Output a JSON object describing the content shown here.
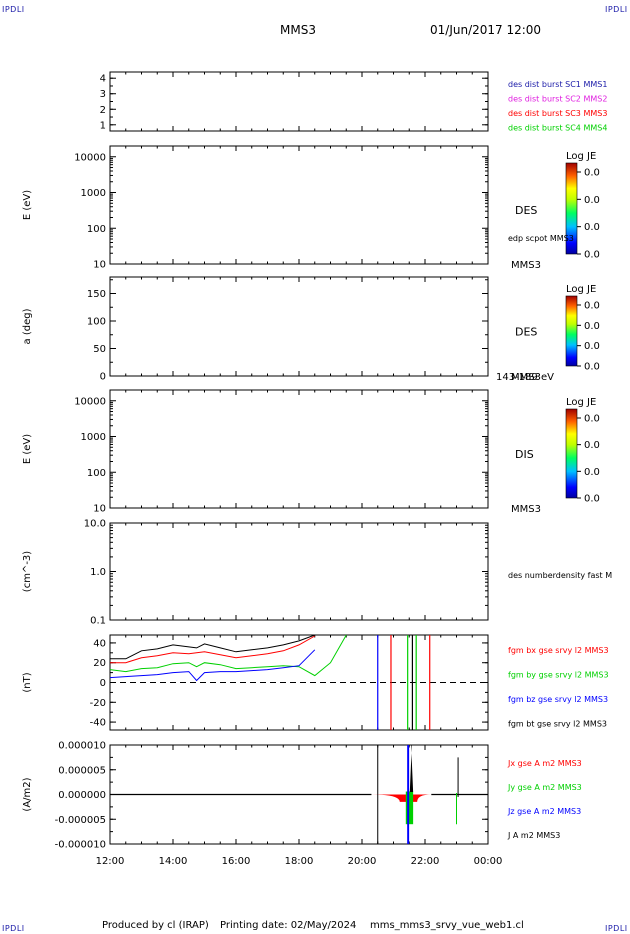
{
  "corner_label": "IPDLI",
  "header": {
    "spacecraft": "MMS3",
    "datetime": "01/Jun/2017 12:00"
  },
  "footer": {
    "produced": "Produced by cl (IRAP)",
    "printing": "Printing date: 02/May/2024",
    "file": "mms_mms3_srvy_vue_web1.cl"
  },
  "colors": {
    "black": "#000000",
    "red": "#ff0000",
    "green": "#00d000",
    "blue": "#0000ff",
    "magenta": "#e020e0",
    "navy": "#1a1aa8"
  },
  "chart_data": [
    {
      "type": "line",
      "ylabel": "",
      "ylim": [
        0.6,
        4.4
      ],
      "yticks": [
        "1",
        "2",
        "3",
        "4"
      ],
      "yticks_values": [
        1,
        2,
        3,
        4
      ],
      "legend": [
        {
          "text": "des dist burst SC1 MMS1",
          "color": "#1a1aa8"
        },
        {
          "text": "des dist burst SC2 MMS2",
          "color": "#e020e0"
        },
        {
          "text": "des dist burst SC3 MMS3",
          "color": "#ff0000"
        },
        {
          "text": "des dist burst SC4 MMS4",
          "color": "#00d000"
        }
      ]
    },
    {
      "type": "heatmap",
      "ylabel": "E (eV)",
      "scale": "log",
      "ylim": [
        10,
        20000
      ],
      "yticks": [
        "10",
        "100",
        "1000",
        "10000"
      ],
      "yticks_values": [
        10,
        100,
        1000,
        10000
      ],
      "instrument": "DES",
      "overlay": "edp scpot MMS3",
      "spacecraft": "MMS3",
      "colorbar": {
        "title": "Log JE",
        "ticks": [
          "0.0",
          "0.0",
          "0.0",
          "0.0"
        ]
      }
    },
    {
      "type": "heatmap",
      "ylabel": "a (deg)",
      "ylim": [
        0,
        180
      ],
      "yticks": [
        "0",
        "50",
        "100",
        "150"
      ],
      "yticks_values": [
        0,
        50,
        100,
        150
      ],
      "instrument": "DES",
      "spacecraft": "MMS3",
      "energy_range": "143-189 eV",
      "colorbar": {
        "title": "Log JE",
        "ticks": [
          "0.0",
          "0.0",
          "0.0",
          "0.0"
        ]
      }
    },
    {
      "type": "heatmap",
      "ylabel": "E (eV)",
      "scale": "log",
      "ylim": [
        10,
        20000
      ],
      "yticks": [
        "10",
        "100",
        "1000",
        "10000"
      ],
      "yticks_values": [
        10,
        100,
        1000,
        10000
      ],
      "instrument": "DIS",
      "spacecraft": "MMS3",
      "colorbar": {
        "title": "Log JE",
        "ticks": [
          "0.0",
          "0.0",
          "0.0",
          "0.0"
        ]
      }
    },
    {
      "type": "line",
      "ylabel": "(cm^-3)",
      "scale": "log",
      "ylim": [
        0.1,
        10
      ],
      "yticks": [
        "0.1",
        "1.0",
        "10.0"
      ],
      "yticks_values": [
        0.1,
        1,
        10
      ],
      "legend": [
        {
          "text": "des numberdensity fast M",
          "color": "#000000"
        }
      ]
    },
    {
      "type": "line",
      "ylabel": "(nT)",
      "ylim": [
        -48,
        48
      ],
      "yticks": [
        "-40",
        "-20",
        "0",
        "20",
        "40"
      ],
      "yticks_values": [
        -40,
        -20,
        0,
        20,
        40
      ],
      "zero_line": true,
      "x_hours": [
        12.0,
        12.5,
        13.0,
        13.5,
        14.0,
        14.5,
        14.75,
        15.0,
        15.5,
        16.0,
        16.5,
        17.0,
        17.5,
        18.0,
        18.5,
        19.0,
        19.5
      ],
      "series": [
        {
          "name": "fgm bx gse srvy l2 MMS3",
          "color": "#ff0000",
          "values": [
            20,
            20,
            25,
            27,
            30,
            29,
            30,
            31,
            28,
            25,
            27,
            29,
            32,
            38,
            47,
            null,
            null
          ]
        },
        {
          "name": "fgm by gse srvy l2 MMS3",
          "color": "#00d000",
          "values": [
            13,
            11,
            14,
            15,
            19,
            20,
            16,
            20,
            18,
            14,
            15,
            16,
            17,
            16,
            7,
            20,
            48
          ]
        },
        {
          "name": "fgm bz gse srvy l2 MMS3",
          "color": "#0000ff",
          "values": [
            5,
            6,
            7,
            8,
            10,
            11,
            2,
            10,
            11,
            11,
            12,
            13,
            15,
            17,
            33,
            null,
            null
          ]
        },
        {
          "name": "fgm bt gse srvy l2 MMS3",
          "color": "#000000",
          "values": [
            24,
            24,
            32,
            34,
            38,
            36,
            35,
            39,
            35,
            31,
            33,
            35,
            38,
            42,
            48,
            null,
            null
          ]
        }
      ],
      "spikes": [
        {
          "x_hours": 20.5,
          "color": "#0000ff",
          "y": [
            -48,
            48
          ]
        },
        {
          "x_hours": 20.92,
          "color": "#ff0000",
          "y": [
            -48,
            48
          ]
        },
        {
          "x_hours": 21.45,
          "color": "#00d000",
          "y": [
            -48,
            48
          ]
        },
        {
          "x_hours": 21.6,
          "color": "#000000",
          "y": [
            -48,
            48
          ]
        },
        {
          "x_hours": 21.72,
          "color": "#00d000",
          "y": [
            -48,
            48
          ]
        },
        {
          "x_hours": 22.15,
          "color": "#ff0000",
          "y": [
            -48,
            48
          ]
        }
      ]
    },
    {
      "type": "line",
      "ylabel": "(A/m2)",
      "ylim": [
        -1e-05,
        1e-05
      ],
      "yticks": [
        "-0.000010",
        "-0.000005",
        "0.000000",
        "0.000005",
        "0.000010"
      ],
      "yticks_values": [
        -1e-05,
        -5e-06,
        0,
        5e-06,
        1e-05
      ],
      "xlim_hours": [
        12,
        24
      ],
      "xticks": [
        "12:00",
        "14:00",
        "16:00",
        "18:00",
        "20:00",
        "22:00",
        "00:00"
      ],
      "xticks_hours": [
        12,
        14,
        16,
        18,
        20,
        22,
        24
      ],
      "series": [
        {
          "name": "Jx gse A m2 MMS3",
          "color": "#ff0000"
        },
        {
          "name": "Jy gse A m2 MMS3",
          "color": "#00d000"
        },
        {
          "name": "Jz gse A m2 MMS3",
          "color": "#0000ff"
        },
        {
          "name": "J A m2 MMS3",
          "color": "#000000"
        }
      ],
      "burst_hours": [
        21.2,
        21.75
      ],
      "burst_peak": 1e-05,
      "spikes": [
        {
          "x_hours": 20.5,
          "color": "#000000",
          "y": [
            1e-05,
            -1e-05
          ]
        },
        {
          "x_hours": 21.45,
          "color": "#0000ff",
          "y": [
            1e-05,
            -1e-05
          ]
        },
        {
          "x_hours": 23.0,
          "color": "#00d000",
          "y": [
            3e-07,
            -6e-06
          ]
        },
        {
          "x_hours": 23.05,
          "color": "#000000",
          "y": [
            7.5e-06,
            -5e-07
          ]
        }
      ]
    }
  ]
}
